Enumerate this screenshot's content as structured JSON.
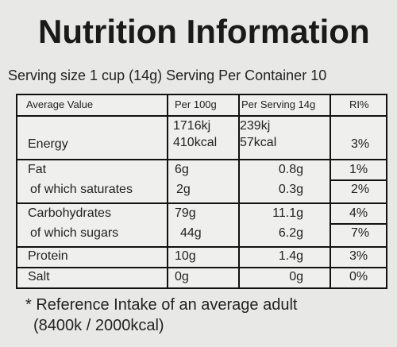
{
  "header": {
    "title": "Nutrition Information",
    "serving": "Serving size 1 cup (14g) Serving Per Container 10"
  },
  "table": {
    "columns": [
      "Average Value",
      "Per 100g",
      "Per Serving 14g",
      "RI%"
    ],
    "rows": [
      [
        "Energy",
        [
          "1716kj",
          "410kcal"
        ],
        [
          "239kj",
          "57kcal"
        ],
        "3%"
      ],
      [
        "Fat",
        "6g",
        "0.8g",
        "1%"
      ],
      [
        "of which saturates",
        "2g",
        "0.3g",
        "2%"
      ],
      [
        "Carbohydrates",
        "79g",
        "11.1g",
        "4%"
      ],
      [
        "of which sugars",
        "44g",
        "6.2g",
        "7%"
      ],
      [
        "Protein",
        "10g",
        "1.4g",
        "3%"
      ],
      [
        "Salt",
        "0g",
        "0g",
        "0%"
      ]
    ]
  },
  "footnote": [
    "* Reference Intake of an average adult",
    "(8400k / 2000kcal)"
  ]
}
